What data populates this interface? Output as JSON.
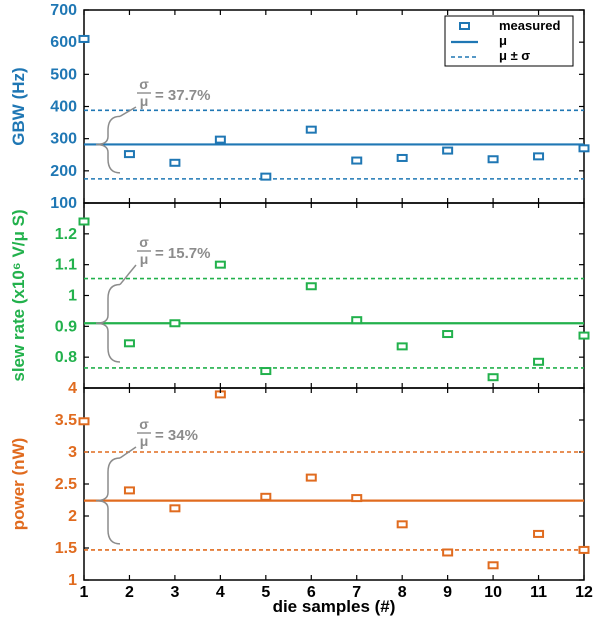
{
  "colors": {
    "gbw": "#1f77b4",
    "slew": "#22b14c",
    "power": "#e06b1f",
    "annotation": "#8c8c8c",
    "axis": "#000000"
  },
  "legend": {
    "measured": "measured",
    "mean": "μ",
    "band": "μ ± σ"
  },
  "xlabel": "die samples (#)",
  "x_ticks": [
    "1",
    "2",
    "3",
    "4",
    "5",
    "6",
    "7",
    "8",
    "9",
    "10",
    "11",
    "12"
  ],
  "chart_data": [
    {
      "type": "scatter",
      "ylabel": "GBW (Hz)",
      "ylim": [
        100,
        700
      ],
      "y_ticks": [
        "700",
        "600",
        "500",
        "400",
        "300",
        "200",
        "100"
      ],
      "y_tick_values": [
        700,
        600,
        500,
        400,
        300,
        200,
        100
      ],
      "x": [
        1,
        2,
        3,
        4,
        5,
        6,
        7,
        8,
        9,
        10,
        11,
        12
      ],
      "values": [
        610,
        252,
        225,
        297,
        182,
        328,
        232,
        240,
        263,
        236,
        245,
        270
      ],
      "mean": 282,
      "mean_minus_sigma": 175,
      "mean_plus_sigma": 388,
      "ratio": {
        "num": "σ",
        "den": "μ",
        "value": "= 37.7%"
      },
      "legend": "top-right"
    },
    {
      "type": "scatter",
      "ylabel": "slew rate (x10⁶ V/μ S)",
      "ylim": [
        0.7,
        1.3
      ],
      "y_ticks": [
        "1.2",
        "1.1",
        "1",
        "0.9",
        "0.8"
      ],
      "y_tick_values": [
        1.2,
        1.1,
        1.0,
        0.9,
        0.8
      ],
      "x": [
        1,
        2,
        3,
        4,
        5,
        6,
        7,
        8,
        9,
        10,
        11,
        12
      ],
      "values": [
        1.24,
        0.845,
        0.91,
        1.1,
        0.755,
        1.03,
        0.92,
        0.835,
        0.875,
        0.735,
        0.785,
        0.87
      ],
      "mean": 0.91,
      "mean_minus_sigma": 0.765,
      "mean_plus_sigma": 1.055,
      "ratio": {
        "num": "σ",
        "den": "μ",
        "value": "= 15.7%"
      }
    },
    {
      "type": "scatter",
      "ylabel": "power (nW)",
      "ylim": [
        1,
        4
      ],
      "y_ticks": [
        "4",
        "3.5",
        "3",
        "2.5",
        "2",
        "1.5",
        "1"
      ],
      "y_tick_values": [
        4,
        3.5,
        3,
        2.5,
        2,
        1.5,
        1
      ],
      "x": [
        1,
        2,
        3,
        4,
        5,
        6,
        7,
        8,
        9,
        10,
        11,
        12
      ],
      "values": [
        3.48,
        2.4,
        2.12,
        3.9,
        2.3,
        2.6,
        2.28,
        1.87,
        1.43,
        1.23,
        1.72,
        1.47
      ],
      "mean": 2.24,
      "mean_minus_sigma": 1.47,
      "mean_plus_sigma": 3.0,
      "ratio": {
        "num": "σ",
        "den": "μ",
        "value": "= 34%"
      }
    }
  ]
}
